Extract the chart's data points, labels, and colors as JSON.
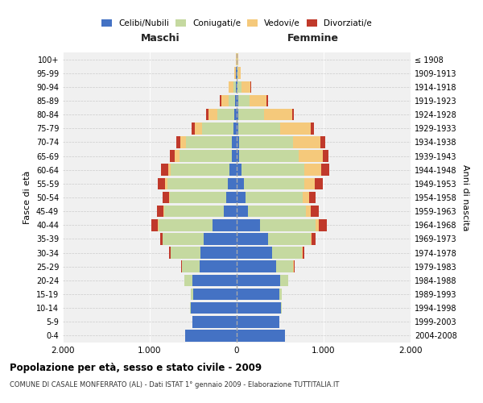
{
  "age_groups": [
    "0-4",
    "5-9",
    "10-14",
    "15-19",
    "20-24",
    "25-29",
    "30-34",
    "35-39",
    "40-44",
    "45-49",
    "50-54",
    "55-59",
    "60-64",
    "65-69",
    "70-74",
    "75-79",
    "80-84",
    "85-89",
    "90-94",
    "95-99",
    "100+"
  ],
  "birth_years": [
    "2004-2008",
    "1999-2003",
    "1994-1998",
    "1989-1993",
    "1984-1988",
    "1979-1983",
    "1974-1978",
    "1969-1973",
    "1964-1968",
    "1959-1963",
    "1954-1958",
    "1949-1953",
    "1944-1948",
    "1939-1943",
    "1934-1938",
    "1929-1933",
    "1924-1928",
    "1919-1923",
    "1914-1918",
    "1909-1913",
    "≤ 1908"
  ],
  "colors": {
    "celibe": "#4472C4",
    "coniugato": "#C5D9A0",
    "vedovo": "#F5C97B",
    "divorziato": "#C0392B"
  },
  "maschi": {
    "celibe": [
      590,
      510,
      530,
      500,
      510,
      430,
      420,
      380,
      280,
      150,
      120,
      100,
      80,
      60,
      55,
      40,
      25,
      15,
      10,
      5,
      2
    ],
    "coniugato": [
      0,
      2,
      5,
      30,
      90,
      200,
      340,
      470,
      620,
      680,
      650,
      700,
      680,
      600,
      530,
      360,
      200,
      80,
      30,
      8,
      2
    ],
    "vedovo": [
      0,
      0,
      0,
      0,
      1,
      2,
      2,
      3,
      5,
      8,
      10,
      20,
      30,
      50,
      60,
      80,
      100,
      80,
      50,
      15,
      5
    ],
    "divorziato": [
      0,
      0,
      0,
      1,
      3,
      5,
      15,
      30,
      80,
      80,
      70,
      90,
      80,
      60,
      50,
      40,
      30,
      15,
      5,
      2,
      1
    ]
  },
  "femmine": {
    "nubile": [
      560,
      490,
      510,
      490,
      500,
      450,
      410,
      360,
      270,
      130,
      100,
      80,
      55,
      30,
      25,
      20,
      15,
      15,
      10,
      5,
      2
    ],
    "coniugata": [
      0,
      2,
      5,
      30,
      90,
      200,
      340,
      490,
      640,
      670,
      660,
      700,
      720,
      680,
      620,
      480,
      300,
      130,
      50,
      10,
      3
    ],
    "vedova": [
      0,
      0,
      0,
      1,
      2,
      5,
      8,
      15,
      30,
      50,
      70,
      120,
      200,
      280,
      320,
      350,
      320,
      200,
      100,
      30,
      10
    ],
    "divorziata": [
      0,
      0,
      0,
      1,
      3,
      8,
      20,
      40,
      100,
      90,
      80,
      90,
      90,
      70,
      55,
      40,
      25,
      15,
      5,
      2,
      1
    ]
  },
  "xlim": 2000,
  "title": "Popolazione per età, sesso e stato civile - 2009",
  "subtitle": "COMUNE DI CASALE MONFERRATO (AL) - Dati ISTAT 1° gennaio 2009 - Elaborazione TUTTITALIA.IT",
  "xlabel_left": "Maschi",
  "xlabel_right": "Femmine",
  "ylabel_left": "Fasce di età",
  "ylabel_right": "Anni di nascita",
  "xtick_labels": [
    "2.000",
    "1.000",
    "0",
    "1.000",
    "2.000"
  ],
  "background_color": "#ffffff",
  "plot_bg": "#f0f0f0"
}
